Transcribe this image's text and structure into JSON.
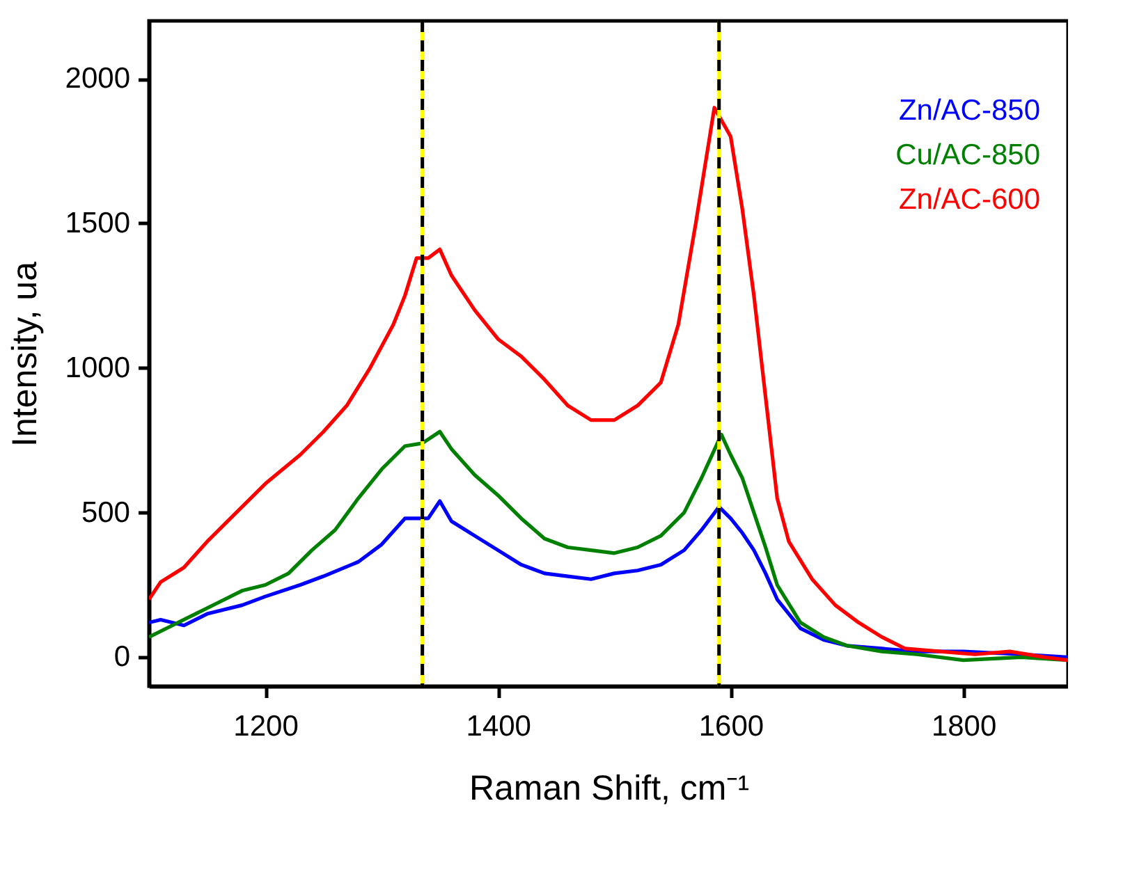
{
  "chart_data": {
    "type": "line",
    "xlabel": "Raman Shift, cm⁻¹",
    "ylabel": "Intensity, ua",
    "xlim": [
      1100,
      1890
    ],
    "xticks": [
      1200,
      1400,
      1600,
      1800
    ],
    "ylim": [
      -100,
      2200
    ],
    "yticks": [
      0,
      500,
      1000,
      1500,
      2000
    ],
    "grid": false,
    "legend": "top right",
    "line_style": "solid",
    "marker": "none",
    "series": [
      {
        "name": "Zn/AC-850",
        "color": "#0000ff",
        "x": [
          1100,
          1110,
          1130,
          1150,
          1180,
          1200,
          1230,
          1250,
          1280,
          1300,
          1320,
          1340,
          1350,
          1360,
          1380,
          1400,
          1420,
          1440,
          1460,
          1480,
          1500,
          1520,
          1540,
          1560,
          1575,
          1590,
          1600,
          1610,
          1620,
          1630,
          1640,
          1660,
          1680,
          1700,
          1730,
          1760,
          1800,
          1850,
          1890
        ],
        "values": [
          120,
          130,
          110,
          150,
          180,
          210,
          250,
          280,
          330,
          390,
          480,
          480,
          540,
          470,
          420,
          370,
          320,
          290,
          280,
          270,
          290,
          300,
          320,
          370,
          440,
          520,
          480,
          430,
          370,
          290,
          200,
          100,
          60,
          40,
          30,
          20,
          20,
          10,
          0
        ]
      },
      {
        "name": "Cu/AC-850",
        "color": "#008000",
        "x": [
          1100,
          1120,
          1140,
          1160,
          1180,
          1200,
          1220,
          1240,
          1260,
          1280,
          1300,
          1320,
          1335,
          1350,
          1360,
          1380,
          1400,
          1420,
          1440,
          1460,
          1480,
          1500,
          1520,
          1540,
          1560,
          1575,
          1592,
          1600,
          1610,
          1620,
          1630,
          1640,
          1660,
          1680,
          1700,
          1730,
          1760,
          1800,
          1850,
          1890
        ],
        "values": [
          70,
          110,
          150,
          190,
          230,
          250,
          290,
          370,
          440,
          550,
          650,
          730,
          740,
          780,
          720,
          630,
          560,
          480,
          410,
          380,
          370,
          360,
          380,
          420,
          500,
          620,
          770,
          700,
          620,
          500,
          380,
          250,
          120,
          70,
          40,
          20,
          10,
          -10,
          0,
          -10
        ]
      },
      {
        "name": "Zn/AC-600",
        "color": "#ff0000",
        "x": [
          1100,
          1110,
          1130,
          1150,
          1170,
          1200,
          1230,
          1250,
          1270,
          1290,
          1310,
          1320,
          1330,
          1340,
          1350,
          1360,
          1380,
          1400,
          1420,
          1440,
          1460,
          1480,
          1500,
          1520,
          1540,
          1555,
          1570,
          1580,
          1586,
          1600,
          1610,
          1620,
          1630,
          1640,
          1650,
          1670,
          1690,
          1710,
          1730,
          1750,
          1780,
          1810,
          1840,
          1870,
          1890
        ],
        "values": [
          200,
          260,
          310,
          400,
          480,
          600,
          700,
          780,
          870,
          1000,
          1150,
          1250,
          1380,
          1380,
          1410,
          1320,
          1200,
          1100,
          1040,
          960,
          870,
          820,
          820,
          870,
          950,
          1150,
          1500,
          1750,
          1900,
          1800,
          1550,
          1250,
          900,
          550,
          400,
          270,
          180,
          120,
          70,
          30,
          20,
          10,
          20,
          0,
          -10
        ]
      }
    ],
    "ref_lines": [
      {
        "axis": "x",
        "value": 1335,
        "color": "#ffff00",
        "line_style": "solid"
      },
      {
        "axis": "x",
        "value": 1335,
        "color": "#000000",
        "line_style": "dashed"
      },
      {
        "axis": "x",
        "value": 1590,
        "color": "#ffff00",
        "line_style": "solid"
      },
      {
        "axis": "x",
        "value": 1590,
        "color": "#000000",
        "line_style": "dashed"
      }
    ]
  }
}
